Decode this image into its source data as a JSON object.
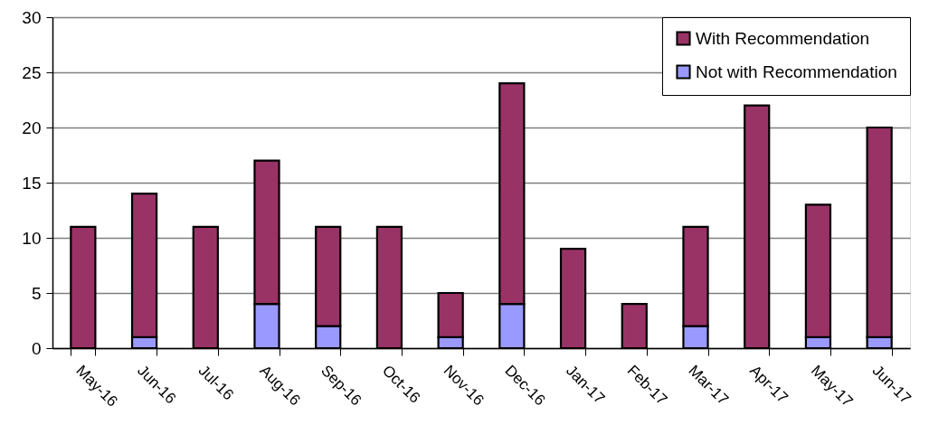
{
  "chart_data": {
    "type": "bar",
    "stacked": true,
    "categories": [
      "May-16",
      "Jun-16",
      "Jul-16",
      "Aug-16",
      "Sep-16",
      "Oct-16",
      "Nov-16",
      "Dec-16",
      "Jan-17",
      "Feb-17",
      "Mar-17",
      "Apr-17",
      "May-17",
      "Jun-17"
    ],
    "series": [
      {
        "name": "Not with Recommendation",
        "color": "#9999ff",
        "values": [
          null,
          1,
          null,
          4,
          2,
          null,
          1,
          4,
          null,
          null,
          2,
          null,
          1,
          1
        ]
      },
      {
        "name": "With Recommendation",
        "color": "#993366",
        "values": [
          11,
          13,
          11,
          13,
          9,
          11,
          4,
          20,
          9,
          4,
          9,
          22,
          12,
          19
        ]
      }
    ],
    "ylim": [
      0,
      30
    ],
    "yticks": [
      0,
      5,
      10,
      15,
      20,
      25,
      30
    ],
    "grid": "y",
    "legend": "top right"
  }
}
